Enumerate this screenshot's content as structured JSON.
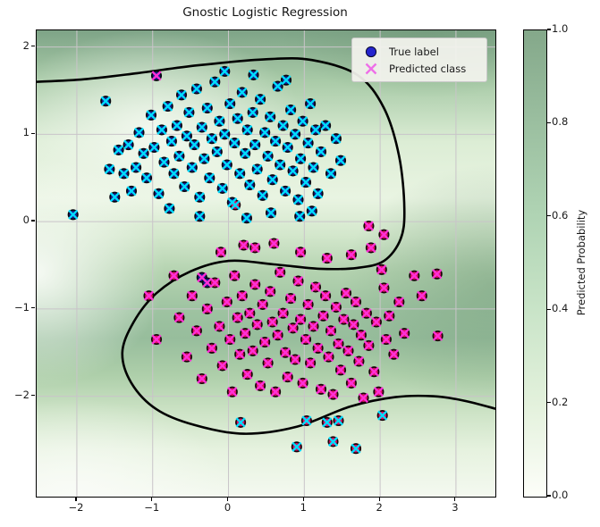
{
  "title": "Gnostic Logistic Regression",
  "legend": {
    "items": [
      {
        "label": "True label",
        "marker": "circle",
        "color": "#2424cd"
      },
      {
        "label": "Predicted class",
        "marker": "x",
        "color": "#ee6fe8"
      }
    ]
  },
  "axes": {
    "xlim": [
      -2.53,
      3.52
    ],
    "ylim": [
      -3.15,
      2.19
    ],
    "x_ticks": [
      {
        "v": -2,
        "label": "−2"
      },
      {
        "v": -1,
        "label": "−1"
      },
      {
        "v": 0,
        "label": "0"
      },
      {
        "v": 1,
        "label": "1"
      },
      {
        "v": 2,
        "label": "2"
      },
      {
        "v": 3,
        "label": "3"
      }
    ],
    "y_ticks": [
      {
        "v": 2,
        "label": "2"
      },
      {
        "v": 1,
        "label": "1"
      },
      {
        "v": 0,
        "label": "0"
      },
      {
        "v": -1,
        "label": "−1"
      },
      {
        "v": -2,
        "label": "−2"
      }
    ],
    "grid": true,
    "grid_color": "#c9c4c9"
  },
  "colorbar": {
    "label": "Predicted Probability",
    "ticks": [
      {
        "v": 1.0,
        "label": "1.0"
      },
      {
        "v": 0.8,
        "label": "0.8"
      },
      {
        "v": 0.6,
        "label": "0.6"
      },
      {
        "v": 0.4,
        "label": "0.4"
      },
      {
        "v": 0.2,
        "label": "0.2"
      },
      {
        "v": 0.0,
        "label": "0.0"
      }
    ],
    "gradient_stops": [
      {
        "at": 0.0,
        "color": "#fdfef9"
      },
      {
        "at": 0.2,
        "color": "#e3f1dc"
      },
      {
        "at": 0.4,
        "color": "#c9e4c8"
      },
      {
        "at": 0.6,
        "color": "#b0d4b4"
      },
      {
        "at": 0.8,
        "color": "#9bbfa0"
      },
      {
        "at": 1.0,
        "color": "#84a88a"
      }
    ]
  },
  "chart_data": {
    "type": "scatter",
    "title": "Gnostic Logistic Regression",
    "xlabel": "",
    "ylabel": "",
    "legend_position": "upper right",
    "boundary_color": "#000000",
    "pred_marker_colors": {
      "class0": "#00dcff",
      "class1": "#ff2fd7"
    },
    "decision_boundary": [
      [
        -2.55,
        1.6
      ],
      [
        -1.9,
        1.63
      ],
      [
        -1.2,
        1.7
      ],
      [
        -0.4,
        1.79
      ],
      [
        0.5,
        1.86
      ],
      [
        1.1,
        1.85
      ],
      [
        1.7,
        1.68
      ],
      [
        2.05,
        1.3
      ],
      [
        2.25,
        0.75
      ],
      [
        2.32,
        0.15
      ],
      [
        2.27,
        -0.2
      ],
      [
        2.05,
        -0.45
      ],
      [
        1.7,
        -0.53
      ],
      [
        1.2,
        -0.54
      ],
      [
        0.6,
        -0.49
      ],
      [
        0.0,
        -0.45
      ],
      [
        -0.5,
        -0.57
      ],
      [
        -0.95,
        -0.82
      ],
      [
        -1.25,
        -1.15
      ],
      [
        -1.4,
        -1.5
      ],
      [
        -1.28,
        -1.85
      ],
      [
        -0.95,
        -2.15
      ],
      [
        -0.45,
        -2.33
      ],
      [
        0.2,
        -2.43
      ],
      [
        0.9,
        -2.35
      ],
      [
        1.6,
        -2.12
      ],
      [
        2.2,
        -2.01
      ],
      [
        2.7,
        -2.0
      ],
      [
        3.1,
        -2.05
      ],
      [
        3.55,
        -2.15
      ]
    ],
    "series": [
      {
        "name": "Class 0",
        "fill": "#181d8f",
        "edge": "#06060f",
        "pred": "class0",
        "points": [
          [
            -2.05,
            0.08
          ],
          [
            -1.62,
            1.38
          ],
          [
            -1.57,
            0.6
          ],
          [
            -1.5,
            0.28
          ],
          [
            -1.45,
            0.82
          ],
          [
            -1.38,
            0.55
          ],
          [
            -1.32,
            0.88
          ],
          [
            -1.28,
            0.35
          ],
          [
            -1.22,
            0.62
          ],
          [
            -1.18,
            1.02
          ],
          [
            -1.12,
            0.78
          ],
          [
            -1.08,
            0.5
          ],
          [
            -1.02,
            1.22
          ],
          [
            -0.98,
            0.85
          ],
          [
            -0.92,
            0.32
          ],
          [
            -0.88,
            1.05
          ],
          [
            -0.85,
            0.68
          ],
          [
            -0.8,
            1.32
          ],
          [
            -0.78,
            0.15
          ],
          [
            -0.75,
            0.92
          ],
          [
            -0.72,
            0.55
          ],
          [
            -0.68,
            1.1
          ],
          [
            -0.65,
            0.75
          ],
          [
            -0.62,
            1.45
          ],
          [
            -0.58,
            0.4
          ],
          [
            -0.55,
            0.98
          ],
          [
            -0.52,
            1.25
          ],
          [
            -0.48,
            0.62
          ],
          [
            -0.45,
            0.88
          ],
          [
            -0.42,
            1.52
          ],
          [
            -0.38,
            0.28
          ],
          [
            -0.38,
            0.06
          ],
          [
            -0.35,
            1.08
          ],
          [
            -0.32,
            0.72
          ],
          [
            -0.28,
            1.3
          ],
          [
            -0.25,
            0.5
          ],
          [
            -0.22,
            0.95
          ],
          [
            -0.18,
            1.6
          ],
          [
            -0.15,
            0.8
          ],
          [
            -0.12,
            1.15
          ],
          [
            -0.08,
            0.38
          ],
          [
            -0.05,
            1.0
          ],
          [
            -0.05,
            1.72
          ],
          [
            -0.02,
            0.65
          ],
          [
            0.02,
            1.35
          ],
          [
            0.05,
            0.22
          ],
          [
            0.08,
            0.9
          ],
          [
            0.12,
            1.18
          ],
          [
            0.15,
            0.55
          ],
          [
            0.18,
            1.48
          ],
          [
            0.22,
            0.78
          ],
          [
            0.24,
            0.04
          ],
          [
            0.25,
            1.05
          ],
          [
            0.28,
            0.42
          ],
          [
            0.32,
            1.25
          ],
          [
            0.33,
            1.68
          ],
          [
            0.35,
            0.88
          ],
          [
            0.38,
            0.6
          ],
          [
            0.42,
            1.4
          ],
          [
            0.45,
            0.3
          ],
          [
            0.48,
            1.02
          ],
          [
            0.52,
            0.75
          ],
          [
            0.55,
            1.2
          ],
          [
            0.56,
            0.1
          ],
          [
            0.58,
            0.48
          ],
          [
            0.62,
            0.92
          ],
          [
            0.65,
            1.55
          ],
          [
            0.68,
            0.65
          ],
          [
            0.72,
            1.1
          ],
          [
            0.75,
            0.35
          ],
          [
            0.76,
            1.62
          ],
          [
            0.78,
            0.85
          ],
          [
            0.82,
            1.28
          ],
          [
            0.85,
            0.58
          ],
          [
            0.88,
            1.0
          ],
          [
            0.92,
            0.25
          ],
          [
            0.94,
            0.06
          ],
          [
            0.95,
            0.72
          ],
          [
            0.98,
            1.15
          ],
          [
            1.02,
            0.45
          ],
          [
            1.05,
            0.9
          ],
          [
            1.08,
            1.35
          ],
          [
            1.1,
            0.12
          ],
          [
            1.12,
            0.62
          ],
          [
            1.15,
            1.05
          ],
          [
            1.18,
            0.32
          ],
          [
            1.22,
            0.8
          ],
          [
            1.28,
            1.1
          ],
          [
            1.35,
            0.55
          ],
          [
            1.42,
            0.95
          ],
          [
            1.48,
            0.7
          ]
        ],
        "mispredicted": [
          [
            -0.95,
            1.67
          ],
          [
            -0.35,
            -0.64
          ],
          [
            -0.28,
            -0.7
          ]
        ]
      },
      {
        "name": "Class 1",
        "fill": "#df1166",
        "edge": "#190309",
        "pred": "class1",
        "points": [
          [
            -1.05,
            -0.85
          ],
          [
            -0.95,
            -1.35
          ],
          [
            -0.72,
            -0.62
          ],
          [
            -0.65,
            -1.1
          ],
          [
            -0.55,
            -1.55
          ],
          [
            -0.48,
            -0.85
          ],
          [
            -0.42,
            -1.25
          ],
          [
            -0.35,
            -1.8
          ],
          [
            -0.28,
            -1.0
          ],
          [
            -0.22,
            -1.45
          ],
          [
            -0.18,
            -0.7
          ],
          [
            -0.12,
            -1.2
          ],
          [
            -0.1,
            -0.35
          ],
          [
            -0.08,
            -1.65
          ],
          [
            -0.02,
            -0.92
          ],
          [
            0.02,
            -1.35
          ],
          [
            0.05,
            -1.95
          ],
          [
            0.08,
            -0.62
          ],
          [
            0.12,
            -1.1
          ],
          [
            0.15,
            -1.52
          ],
          [
            0.18,
            -0.85
          ],
          [
            0.2,
            -0.27
          ],
          [
            0.22,
            -1.28
          ],
          [
            0.25,
            -1.75
          ],
          [
            0.28,
            -1.05
          ],
          [
            0.32,
            -1.48
          ],
          [
            0.35,
            -0.3
          ],
          [
            0.35,
            -0.72
          ],
          [
            0.38,
            -1.18
          ],
          [
            0.42,
            -1.88
          ],
          [
            0.45,
            -0.95
          ],
          [
            0.48,
            -1.38
          ],
          [
            0.52,
            -1.62
          ],
          [
            0.55,
            -0.8
          ],
          [
            0.58,
            -1.15
          ],
          [
            0.6,
            -0.25
          ],
          [
            0.62,
            -1.95
          ],
          [
            0.65,
            -1.3
          ],
          [
            0.68,
            -0.58
          ],
          [
            0.72,
            -1.05
          ],
          [
            0.75,
            -1.5
          ],
          [
            0.78,
            -1.78
          ],
          [
            0.82,
            -0.88
          ],
          [
            0.85,
            -1.22
          ],
          [
            0.88,
            -1.58
          ],
          [
            0.92,
            -0.68
          ],
          [
            0.95,
            -0.35
          ],
          [
            0.95,
            -1.12
          ],
          [
            0.98,
            -1.85
          ],
          [
            1.02,
            -1.35
          ],
          [
            1.05,
            -0.95
          ],
          [
            1.08,
            -1.62
          ],
          [
            1.12,
            -1.2
          ],
          [
            1.15,
            -0.75
          ],
          [
            1.18,
            -1.45
          ],
          [
            1.22,
            -1.92
          ],
          [
            1.25,
            -1.08
          ],
          [
            1.28,
            -0.85
          ],
          [
            1.3,
            -0.42
          ],
          [
            1.32,
            -1.55
          ],
          [
            1.35,
            -1.25
          ],
          [
            1.38,
            -1.98
          ],
          [
            1.42,
            -0.98
          ],
          [
            1.45,
            -1.4
          ],
          [
            1.48,
            -1.7
          ],
          [
            1.52,
            -1.12
          ],
          [
            1.55,
            -0.82
          ],
          [
            1.58,
            -1.48
          ],
          [
            1.62,
            -0.38
          ],
          [
            1.62,
            -1.85
          ],
          [
            1.65,
            -1.18
          ],
          [
            1.68,
            -0.92
          ],
          [
            1.72,
            -1.6
          ],
          [
            1.75,
            -1.3
          ],
          [
            1.78,
            -2.02
          ],
          [
            1.82,
            -1.05
          ],
          [
            1.85,
            -0.05
          ],
          [
            1.85,
            -1.42
          ],
          [
            1.88,
            -0.3
          ],
          [
            1.92,
            -1.72
          ],
          [
            1.95,
            -1.15
          ],
          [
            1.98,
            -1.95
          ],
          [
            2.02,
            -0.55
          ],
          [
            2.05,
            -0.15
          ],
          [
            2.05,
            -0.76
          ],
          [
            2.08,
            -1.35
          ],
          [
            2.12,
            -1.08
          ],
          [
            2.18,
            -1.52
          ],
          [
            2.25,
            -0.92
          ],
          [
            2.32,
            -1.28
          ],
          [
            2.45,
            -0.62
          ],
          [
            2.55,
            -0.85
          ],
          [
            2.75,
            -0.6
          ],
          [
            2.76,
            -1.31
          ]
        ],
        "mispredicted": [
          [
            0.16,
            -2.3
          ],
          [
            0.9,
            -2.58
          ],
          [
            1.03,
            -2.28
          ],
          [
            1.38,
            -2.52
          ],
          [
            1.3,
            -2.3
          ],
          [
            1.45,
            -2.28
          ],
          [
            2.03,
            -2.22
          ],
          [
            1.68,
            -2.6
          ],
          [
            0.09,
            0.19
          ]
        ]
      }
    ]
  }
}
